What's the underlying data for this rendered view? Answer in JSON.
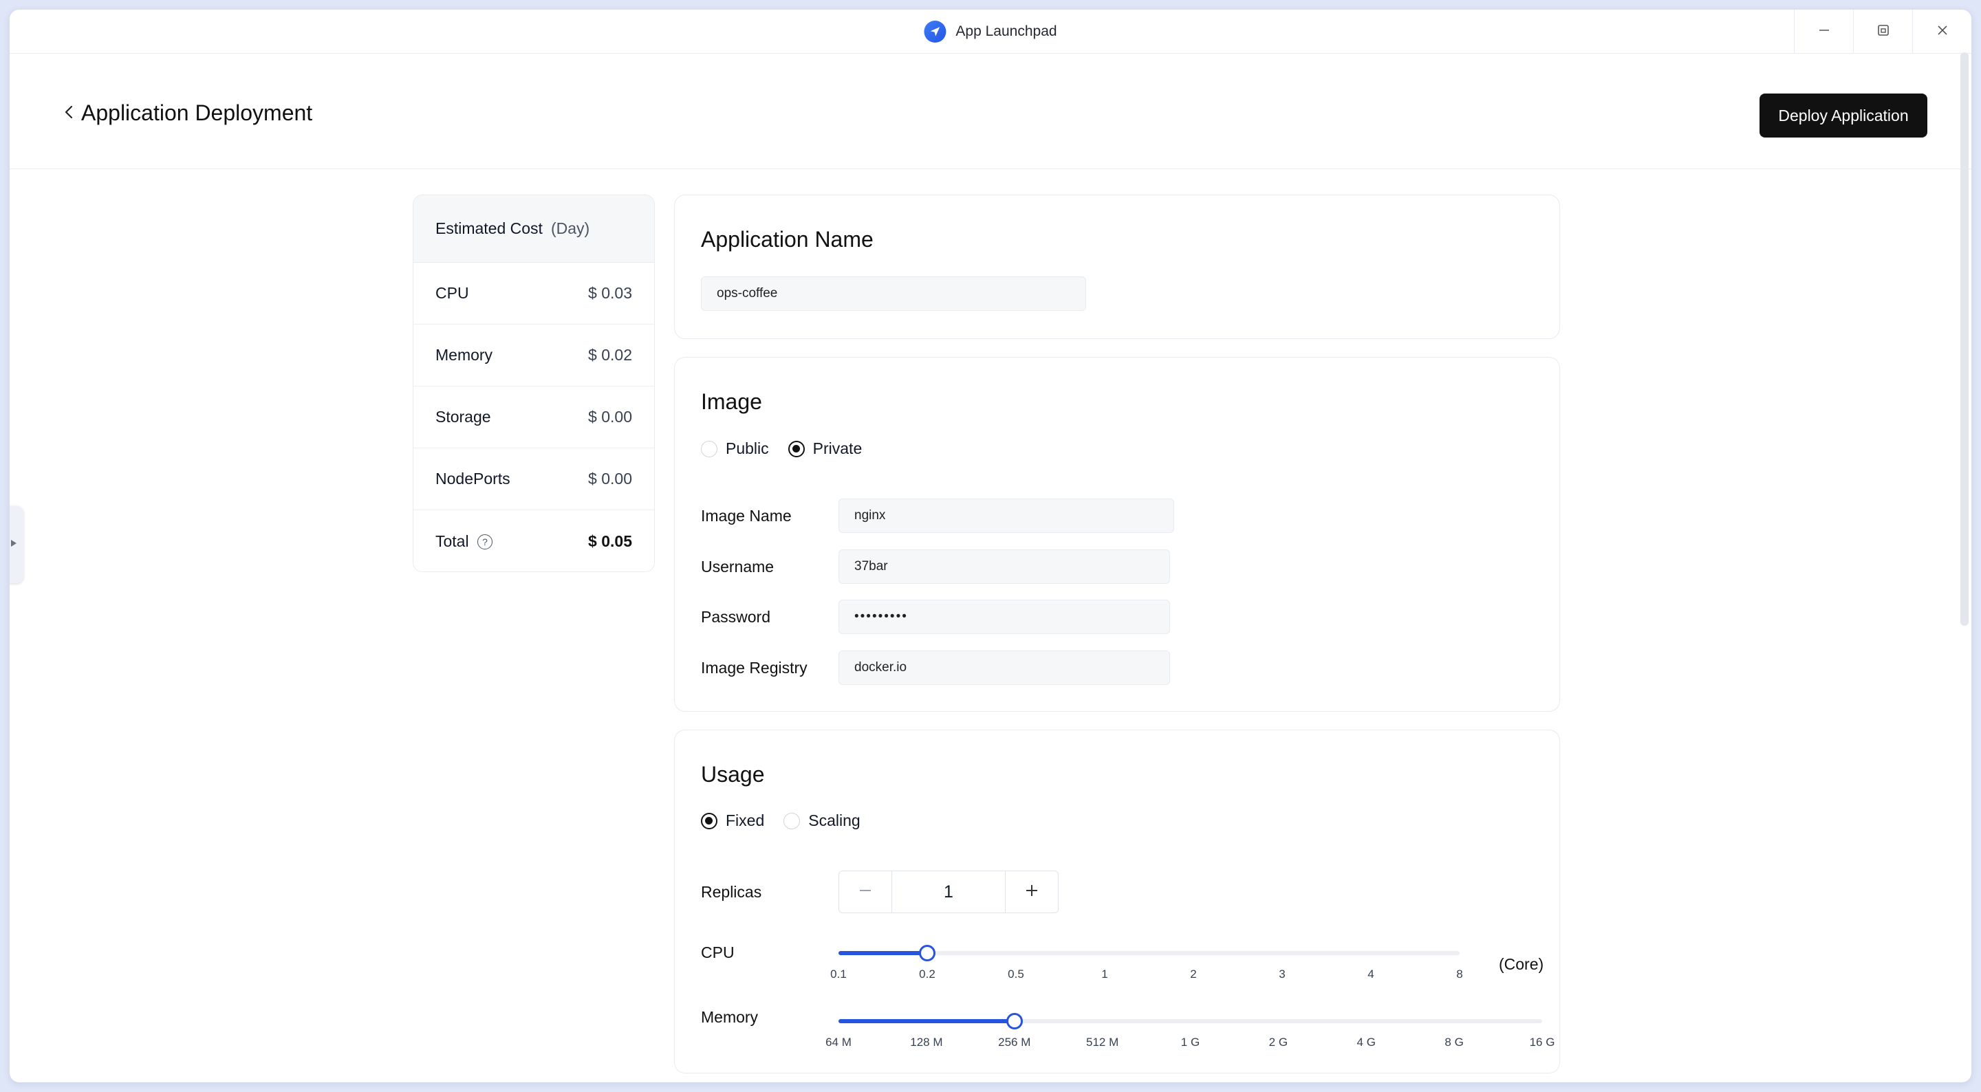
{
  "window": {
    "title": "App Launchpad"
  },
  "header": {
    "title": "Application Deployment",
    "deploy_label": "Deploy Application"
  },
  "cost": {
    "title": "Estimated Cost",
    "period": "(Day)",
    "rows": [
      {
        "label": "CPU",
        "price": "$ 0.03"
      },
      {
        "label": "Memory",
        "price": "$ 0.02"
      },
      {
        "label": "Storage",
        "price": "$ 0.00"
      },
      {
        "label": "NodePorts",
        "price": "$ 0.00"
      }
    ],
    "total_label": "Total",
    "total_price": "$ 0.05",
    "help_icon": "question-circle-icon"
  },
  "app_name": {
    "title": "Application Name",
    "value": "ops-coffee"
  },
  "image": {
    "title": "Image",
    "options": [
      "Public",
      "Private"
    ],
    "selected": "Private",
    "fields": {
      "image_name": {
        "label": "Image Name",
        "value": "nginx"
      },
      "username": {
        "label": "Username",
        "value": "37bar"
      },
      "password": {
        "label": "Password",
        "value": "•••••••••"
      },
      "registry": {
        "label": "Image Registry",
        "value": "docker.io"
      }
    }
  },
  "usage": {
    "title": "Usage",
    "options": [
      "Fixed",
      "Scaling"
    ],
    "selected": "Fixed",
    "replicas_label": "Replicas",
    "replicas_value": "1",
    "cpu": {
      "label": "CPU",
      "unit": "(Core)",
      "ticks": [
        "0.1",
        "0.2",
        "0.5",
        "1",
        "2",
        "3",
        "4",
        "8"
      ],
      "selected_index": 1
    },
    "memory": {
      "label": "Memory",
      "ticks": [
        "64 M",
        "128 M",
        "256 M",
        "512 M",
        "1 G",
        "2 G",
        "4 G",
        "8 G",
        "16 G"
      ],
      "selected_index": 2
    }
  },
  "colors": {
    "accent": "#2654de",
    "primary_button": "#111111"
  }
}
